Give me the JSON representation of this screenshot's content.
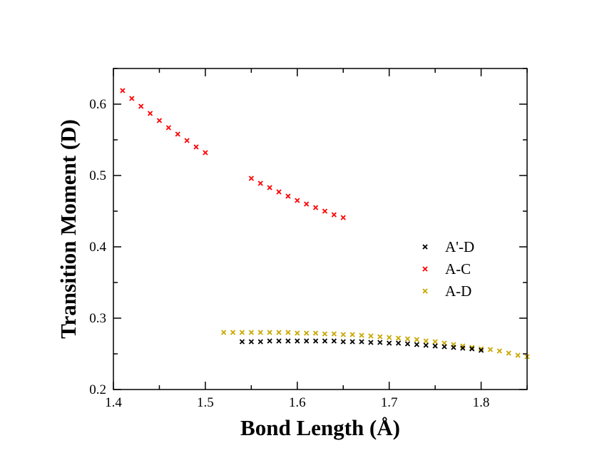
{
  "chart_data": {
    "type": "scatter",
    "title": "",
    "xlabel": "Bond Length (Å)",
    "ylabel": "Transition Moment (D)",
    "xlim": [
      1.4,
      1.85
    ],
    "ylim": [
      0.2,
      0.65
    ],
    "xticks": [
      1.4,
      1.5,
      1.6,
      1.7,
      1.8
    ],
    "xtick_labels": [
      "1.4",
      "1.5",
      "1.6",
      "1.7",
      "1.8"
    ],
    "yticks": [
      0.2,
      0.3,
      0.4,
      0.5,
      0.6
    ],
    "ytick_labels": [
      "0.2",
      "0.3",
      "0.4",
      "0.5",
      "0.6"
    ],
    "grid": false,
    "legend_position": "right",
    "series": [
      {
        "name": "A'-D",
        "color": "#000000",
        "marker": "x",
        "x": [
          1.54,
          1.55,
          1.56,
          1.57,
          1.58,
          1.59,
          1.6,
          1.61,
          1.62,
          1.63,
          1.64,
          1.65,
          1.66,
          1.67,
          1.68,
          1.69,
          1.7,
          1.71,
          1.72,
          1.73,
          1.74,
          1.75,
          1.76,
          1.77,
          1.78,
          1.79,
          1.8
        ],
        "y": [
          0.267,
          0.267,
          0.267,
          0.268,
          0.268,
          0.268,
          0.268,
          0.268,
          0.268,
          0.268,
          0.268,
          0.267,
          0.267,
          0.267,
          0.266,
          0.266,
          0.265,
          0.265,
          0.264,
          0.263,
          0.262,
          0.261,
          0.26,
          0.259,
          0.258,
          0.257,
          0.255
        ]
      },
      {
        "name": "A-C",
        "color": "#ff0000",
        "marker": "x",
        "x": [
          1.41,
          1.42,
          1.43,
          1.44,
          1.45,
          1.46,
          1.47,
          1.48,
          1.49,
          1.5,
          1.55,
          1.56,
          1.57,
          1.58,
          1.59,
          1.6,
          1.61,
          1.62,
          1.63,
          1.64,
          1.65
        ],
        "y": [
          0.619,
          0.608,
          0.597,
          0.587,
          0.577,
          0.567,
          0.558,
          0.549,
          0.54,
          0.532,
          0.496,
          0.489,
          0.483,
          0.477,
          0.471,
          0.465,
          0.46,
          0.455,
          0.45,
          0.445,
          0.441
        ]
      },
      {
        "name": "A-D",
        "color": "#c8a800",
        "marker": "x",
        "x": [
          1.52,
          1.53,
          1.54,
          1.55,
          1.56,
          1.57,
          1.58,
          1.59,
          1.6,
          1.61,
          1.62,
          1.63,
          1.64,
          1.65,
          1.66,
          1.67,
          1.68,
          1.69,
          1.7,
          1.71,
          1.72,
          1.73,
          1.74,
          1.75,
          1.76,
          1.77,
          1.78,
          1.79,
          1.8,
          1.81,
          1.82,
          1.83,
          1.84,
          1.85
        ],
        "y": [
          0.28,
          0.28,
          0.28,
          0.28,
          0.28,
          0.28,
          0.28,
          0.28,
          0.279,
          0.279,
          0.279,
          0.278,
          0.278,
          0.277,
          0.277,
          0.276,
          0.275,
          0.274,
          0.273,
          0.272,
          0.271,
          0.27,
          0.268,
          0.267,
          0.265,
          0.263,
          0.261,
          0.259,
          0.257,
          0.256,
          0.254,
          0.251,
          0.248,
          0.246
        ]
      }
    ]
  }
}
